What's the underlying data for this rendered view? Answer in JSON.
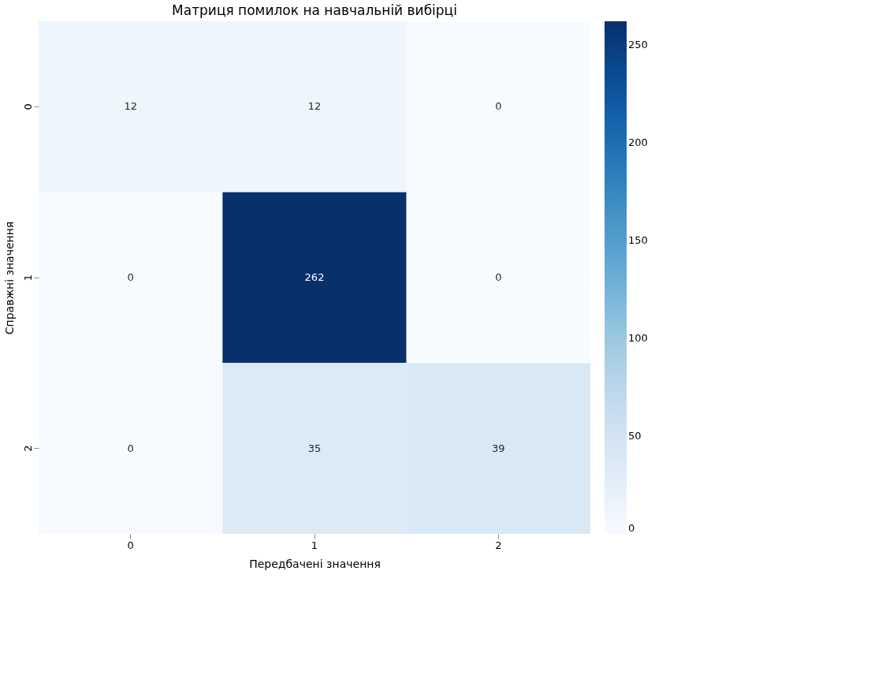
{
  "chart_data": {
    "type": "heatmap",
    "title": "Матриця помилок на навчальній вибірці",
    "xlabel": "Передбачені значення",
    "ylabel": "Справжні значення",
    "categories": [
      "0",
      "1",
      "2"
    ],
    "y_categories": [
      "0",
      "1",
      "2"
    ],
    "cells": [
      [
        12,
        12,
        0
      ],
      [
        0,
        262,
        0
      ],
      [
        0,
        35,
        39
      ]
    ],
    "clim": [
      0,
      262
    ],
    "cticks": [
      0,
      50,
      100,
      150,
      200,
      250
    ],
    "data_labels": true
  }
}
